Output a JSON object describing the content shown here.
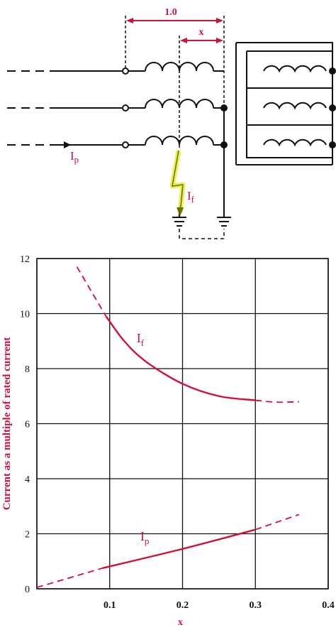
{
  "diagram": {
    "dim_total": "1.0",
    "dim_x": "x",
    "label_ip": "I",
    "label_ip_sub": "p",
    "label_if": "I",
    "label_if_sub": "f",
    "colors": {
      "red": "#d0103a",
      "black": "#111111",
      "highlight": "#e8ef3a"
    }
  },
  "chart_data": {
    "type": "line",
    "xlabel": "x",
    "ylabel": "Current as a multiple of rated current",
    "xlim": [
      0,
      0.4
    ],
    "ylim": [
      0,
      12
    ],
    "x_ticks": [
      "0.1",
      "0.2",
      "0.3",
      "0.4"
    ],
    "y_ticks": [
      "0",
      "2",
      "4",
      "6",
      "8",
      "10",
      "12"
    ],
    "grid": true,
    "series": [
      {
        "name": "If",
        "label": "I",
        "label_sub": "f",
        "solid": [
          [
            0.095,
            9.9
          ],
          [
            0.12,
            9.0
          ],
          [
            0.15,
            8.25
          ],
          [
            0.2,
            7.45
          ],
          [
            0.25,
            7.0
          ],
          [
            0.3,
            6.85
          ]
        ],
        "dashed_start": [
          [
            0.055,
            11.7
          ],
          [
            0.075,
            10.8
          ],
          [
            0.095,
            9.9
          ]
        ],
        "dashed_end": [
          [
            0.3,
            6.85
          ],
          [
            0.33,
            6.78
          ],
          [
            0.36,
            6.8
          ]
        ]
      },
      {
        "name": "Ip",
        "label": "I",
        "label_sub": "p",
        "solid": [
          [
            0.09,
            0.75
          ],
          [
            0.2,
            1.45
          ],
          [
            0.3,
            2.15
          ]
        ],
        "dashed_start": [
          [
            0.0,
            0.05
          ],
          [
            0.09,
            0.75
          ]
        ],
        "dashed_end": [
          [
            0.3,
            2.15
          ],
          [
            0.36,
            2.7
          ]
        ]
      }
    ]
  }
}
